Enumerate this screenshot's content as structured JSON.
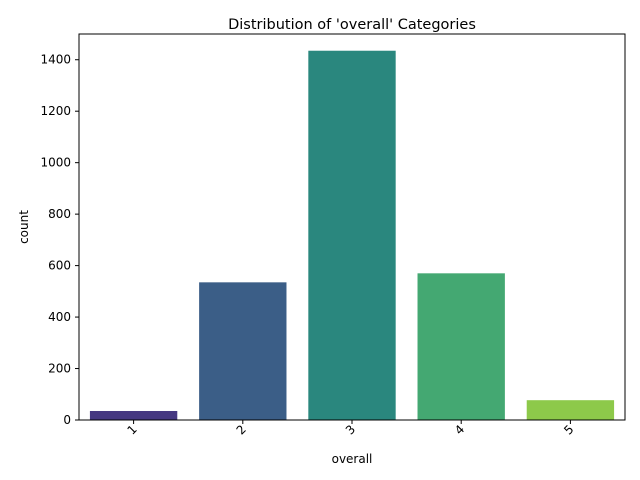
{
  "chart_data": {
    "type": "bar",
    "title": "Distribution of 'overall' Categories",
    "xlabel": "overall",
    "ylabel": "count",
    "categories": [
      "1",
      "2",
      "3",
      "4",
      "5"
    ],
    "values": [
      35,
      535,
      1435,
      570,
      77
    ],
    "colors": [
      "#453781",
      "#3b5e87",
      "#2a877e",
      "#44a872",
      "#8dc94a"
    ],
    "ylim": [
      0,
      1500
    ],
    "yticks": [
      0,
      200,
      400,
      600,
      800,
      1000,
      1200,
      1400
    ],
    "xtick_rotation": 45,
    "grid": false,
    "legend": false
  }
}
